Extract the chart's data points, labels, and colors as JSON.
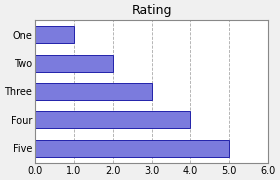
{
  "title": "Rating",
  "categories": [
    "One",
    "Two",
    "Three",
    "Four",
    "Five"
  ],
  "values": [
    1,
    2,
    3,
    4,
    5
  ],
  "bar_color": "#7b7bdd",
  "bar_edgecolor": "#2222aa",
  "xlim": [
    0,
    6
  ],
  "xticks": [
    0.0,
    1.0,
    2.0,
    3.0,
    4.0,
    5.0,
    6.0
  ],
  "xtick_labels": [
    "0.0",
    "1.0",
    "2.0",
    "3.0",
    "4.0",
    "5.0",
    "6.0"
  ],
  "grid_color": "#aaaaaa",
  "bg_color": "#f0f0f0",
  "plot_bg_color": "#ffffff",
  "border_color": "#888888",
  "title_fontsize": 9,
  "tick_fontsize": 7,
  "bar_height": 0.6
}
